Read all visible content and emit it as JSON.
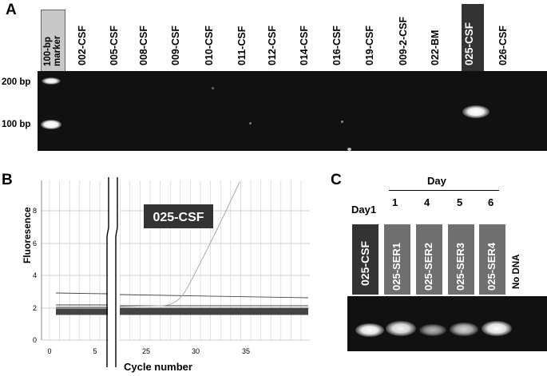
{
  "panel_a": {
    "letter": "A",
    "marker_label_line1": "100-bp",
    "marker_label_line2": "marker",
    "lanes": [
      "002-CSF",
      "005-CSF",
      "008-CSF",
      "009-CSF",
      "010-CSF",
      "011-CSF",
      "012-CSF",
      "014-CSF",
      "016-CSF",
      "019-CSF",
      "009-2-CSF",
      "022-BM",
      "025-CSF",
      "026-CSF"
    ],
    "size_labels": [
      "200 bp",
      "100 bp"
    ]
  },
  "panel_b": {
    "letter": "B",
    "ylabel": "Fluoresence",
    "xlabel": "Cycle number",
    "badge": "025-CSF",
    "y_ticks": [
      "0",
      "2",
      "4",
      "6",
      "8"
    ],
    "x_ticks": [
      "0",
      "5",
      "25",
      "30",
      "35"
    ]
  },
  "panel_c": {
    "letter": "C",
    "day_header": "Day",
    "day1_label": "Day1",
    "day_numbers": [
      "1",
      "4",
      "5",
      "6"
    ],
    "lanes": [
      "025-CSF",
      "025-SER1",
      "025-SER2",
      "025-SER3",
      "025-SER4"
    ],
    "no_dna": "No DNA"
  },
  "colors": {
    "gel": "#111111",
    "highlight": "#333333",
    "marker_box": "#c8c8c8",
    "ser_box": "#6f6f6f"
  }
}
